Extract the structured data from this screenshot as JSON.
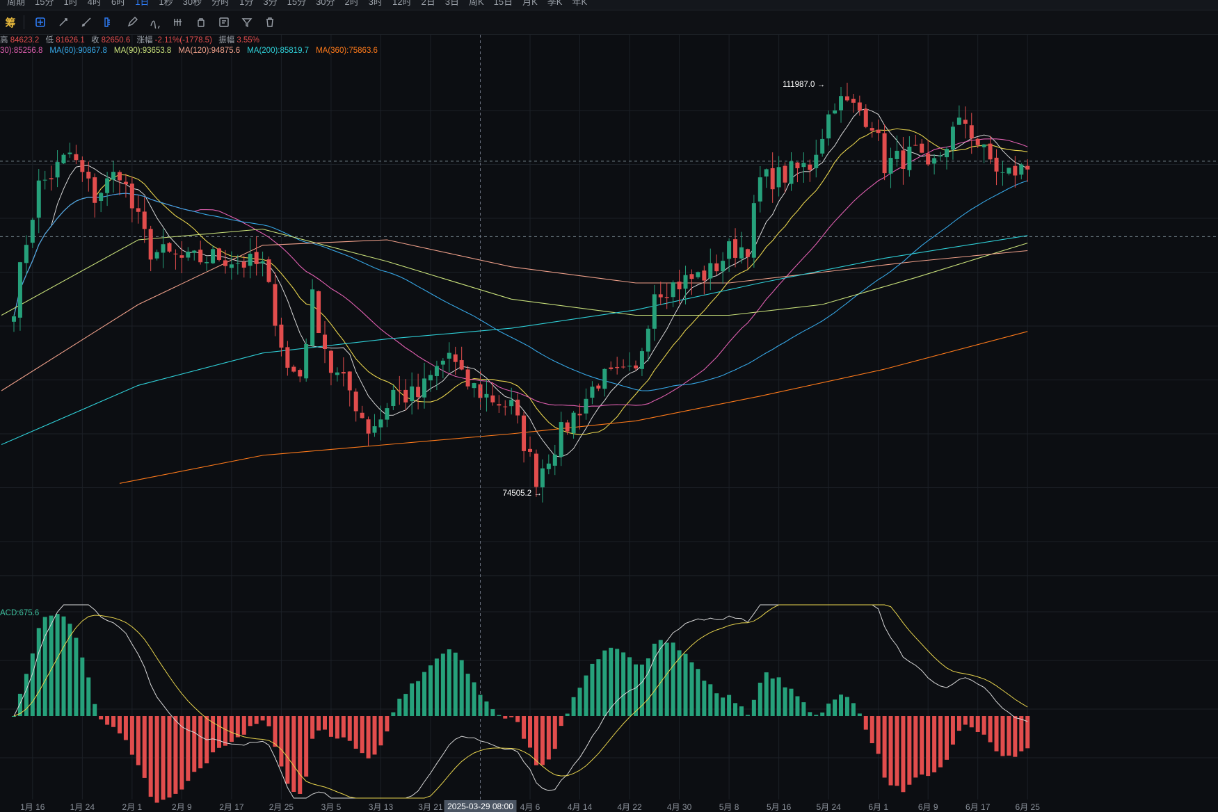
{
  "topbar": {
    "timeframes": [
      "周期",
      "15分",
      "1时",
      "4时",
      "6时",
      "1日",
      "1秒",
      "30秒",
      "分时",
      "1分",
      "3分",
      "15分",
      "30分",
      "2时",
      "3时",
      "12时",
      "2日",
      "3日",
      "周K",
      "15日",
      "月K",
      "季K",
      "年K"
    ],
    "active_index": 5
  },
  "toolbar": {
    "badge": "筹",
    "tools": [
      "crosshair-icon",
      "cursor-icon",
      "square-select-icon",
      "ruler-icon",
      "pen-icon",
      "indicator-icon",
      "lock-icon",
      "edit-note-icon",
      "magnet-icon",
      "filter-icon",
      "trash-icon"
    ]
  },
  "info": {
    "high_label": "高",
    "high": "84623.2",
    "low_label": "低",
    "low": "81626.1",
    "close_label": "收",
    "close": "82650.6",
    "change_label": "涨幅",
    "change": "-2.11%(-1778.5)",
    "amp_label": "振幅",
    "amp": "3.55%"
  },
  "ma_legend": [
    {
      "text": "30):85256.8",
      "color": "#e05fb0"
    },
    {
      "text": "MA(60):90867.8",
      "color": "#36a7e6"
    },
    {
      "text": "MA(90):93653.8",
      "color": "#c8e07a"
    },
    {
      "text": "MA(120):94875.6",
      "color": "#f0a08a"
    },
    {
      "text": "MA(200):85819.7",
      "color": "#2fd0d8"
    },
    {
      "text": "MA(360):75863.6",
      "color": "#ff7a1a"
    }
  ],
  "macd_label": "ACD:675.6",
  "annotations": {
    "high_marker": "111987.0 →",
    "low_marker": "74505.2 →",
    "crosshair_date": "2025-03-29 08:00"
  },
  "colors": {
    "up": "#26a17b",
    "down": "#e24d4d",
    "background": "#0c0e12",
    "grid": "#1c2027"
  },
  "chart_data": {
    "type": "candlestick",
    "title": "",
    "x_tick_labels": [
      "1月 16",
      "1月 24",
      "2月 1",
      "2月 9",
      "2月 17",
      "2月 25",
      "3月 5",
      "3月 13",
      "3月 21",
      "4月 6",
      "4月 14",
      "4月 22",
      "4月 30",
      "5月 8",
      "5月 16",
      "5月 24",
      "6月 1",
      "6月 9",
      "6月 17",
      "6月 25"
    ],
    "x_range": [
      "2025-01-13",
      "2025-06-30"
    ],
    "price_range_approx": [
      68000,
      114000
    ],
    "horizontal_levels": [
      105300,
      98300
    ],
    "extremes": {
      "high": 111987.0,
      "low": 74505.2
    },
    "grid": true,
    "panels": [
      "price with MA(30/60/90/120/200/360)",
      "MACD histogram with DIF/DEA"
    ]
  }
}
